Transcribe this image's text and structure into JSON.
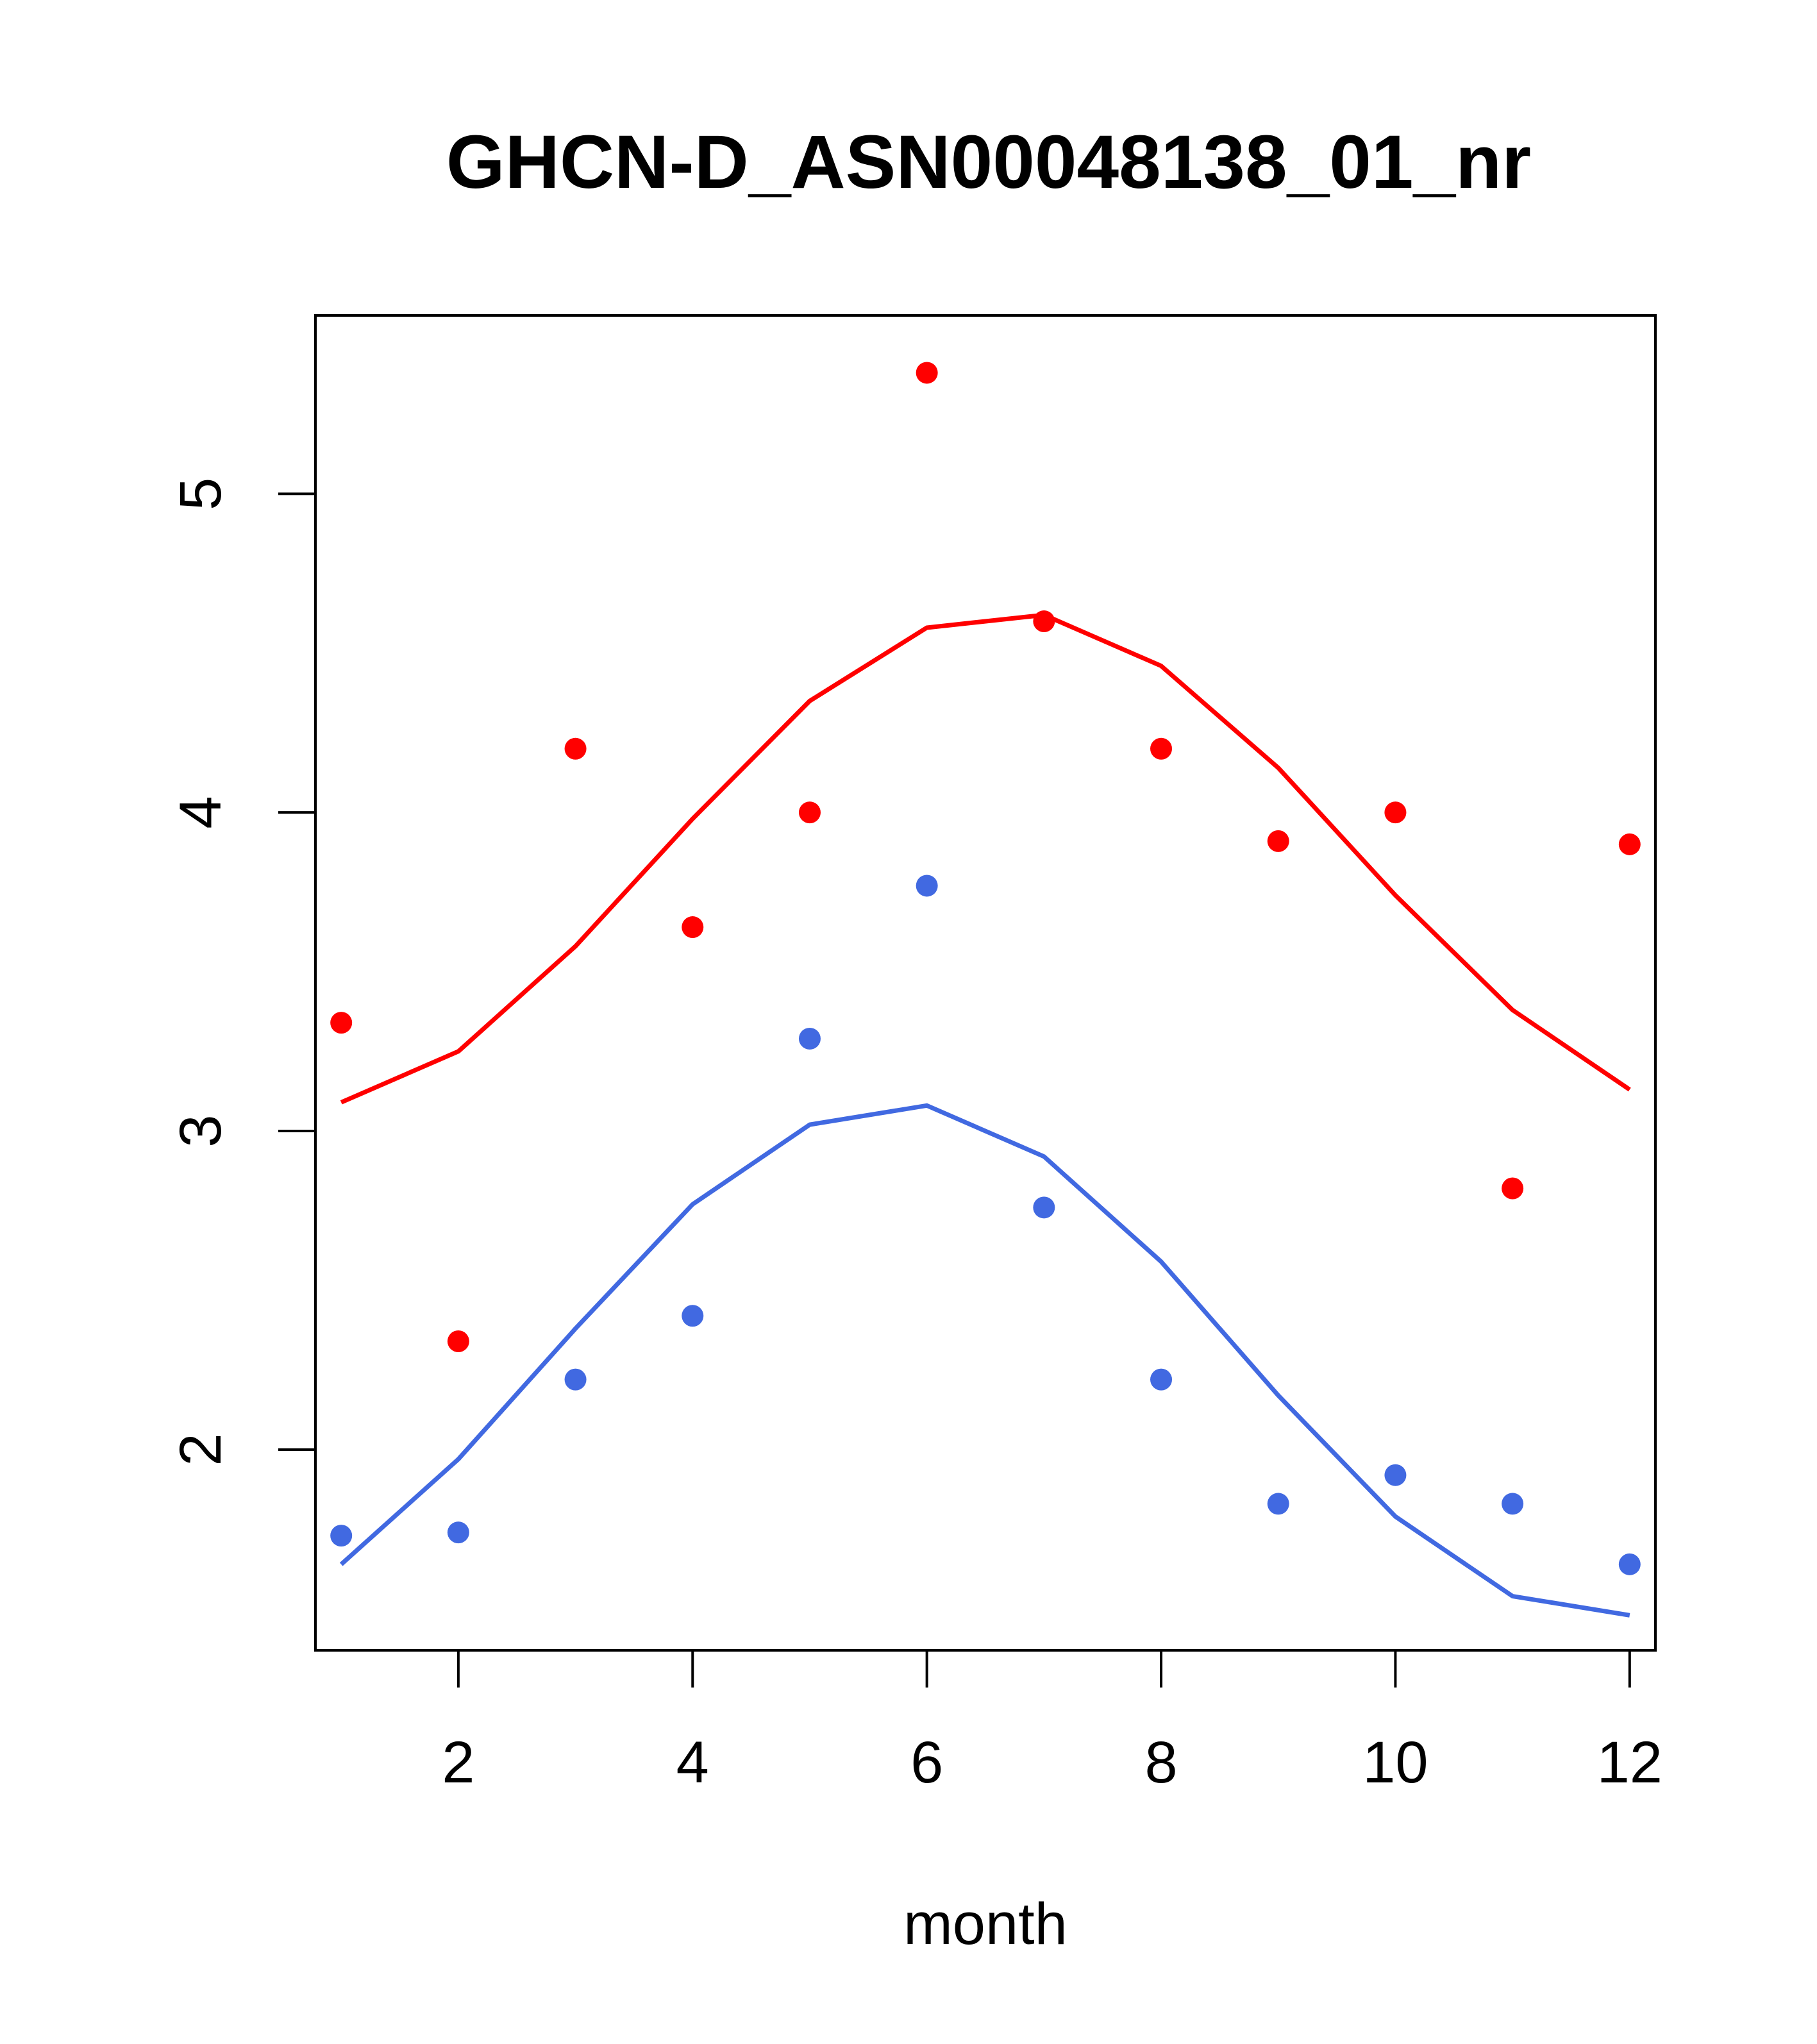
{
  "chart_data": {
    "type": "scatter",
    "title": "GHCN-D_ASN00048138_01_nr",
    "xlabel": "month",
    "ylabel": "",
    "xlim": [
      0.78,
      12.22
    ],
    "ylim": [
      1.37,
      5.56
    ],
    "x_ticks": [
      2,
      4,
      6,
      8,
      10,
      12
    ],
    "y_ticks": [
      2,
      3,
      4,
      5
    ],
    "grid": false,
    "legend": "none",
    "series": [
      {
        "color": "#FF0000",
        "x": [
          1,
          2,
          3,
          4,
          5,
          6,
          7,
          8,
          9,
          10,
          11,
          12
        ],
        "points": [
          3.34,
          2.34,
          4.2,
          3.64,
          4.0,
          5.38,
          4.6,
          4.2,
          3.91,
          4.0,
          2.82,
          3.9
        ],
        "line": [
          3.09,
          3.25,
          3.58,
          3.98,
          4.35,
          4.58,
          4.62,
          4.46,
          4.14,
          3.74,
          3.38,
          3.13
        ]
      },
      {
        "color": "#4169E1",
        "x": [
          1,
          2,
          3,
          4,
          5,
          6,
          7,
          8,
          9,
          10,
          11,
          12
        ],
        "points": [
          1.73,
          1.74,
          2.22,
          2.42,
          3.29,
          3.77,
          2.76,
          2.22,
          1.83,
          1.92,
          1.83,
          1.64
        ],
        "line": [
          1.64,
          1.97,
          2.38,
          2.77,
          3.02,
          3.08,
          2.92,
          2.59,
          2.17,
          1.79,
          1.54,
          1.48
        ]
      }
    ]
  }
}
